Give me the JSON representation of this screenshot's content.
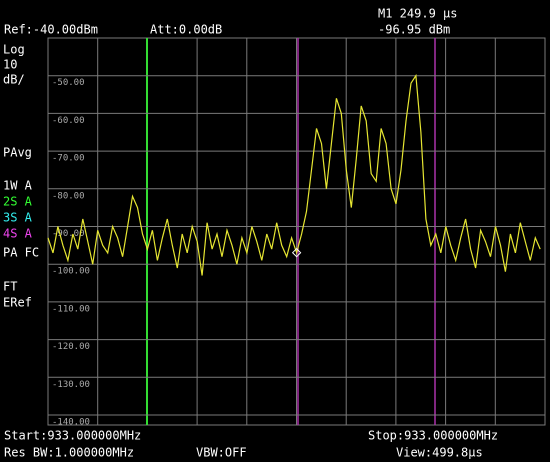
{
  "chart_data": {
    "type": "line",
    "x": [
      0,
      5,
      10,
      15,
      20,
      25,
      30,
      35,
      40,
      45,
      50,
      55,
      60,
      65,
      70,
      75,
      80,
      85,
      90,
      95,
      100,
      105,
      110,
      115,
      120,
      125,
      130,
      135,
      140,
      145,
      150,
      155,
      160,
      165,
      170,
      175,
      180,
      185,
      190,
      195,
      200,
      205,
      210,
      215,
      220,
      225,
      230,
      235,
      240,
      245,
      250,
      255,
      260,
      265,
      270,
      275,
      280,
      285,
      290,
      295,
      300,
      305,
      310,
      315,
      320,
      325,
      330,
      335,
      340,
      345,
      350,
      355,
      360,
      365,
      370,
      375,
      380,
      385,
      390,
      395,
      400,
      405,
      410,
      415,
      420,
      425,
      430,
      435,
      440,
      445,
      450,
      455,
      460,
      465,
      470,
      475,
      480,
      485,
      490,
      495
    ],
    "values": [
      -93,
      -97,
      -90,
      -95,
      -99,
      -92,
      -96,
      -88,
      -94,
      -100,
      -91,
      -95,
      -97,
      -90,
      -93,
      -98,
      -90,
      -82,
      -85,
      -92,
      -96,
      -91,
      -99,
      -93,
      -88,
      -95,
      -101,
      -92,
      -97,
      -90,
      -94,
      -103,
      -89,
      -96,
      -92,
      -98,
      -91,
      -95,
      -100,
      -93,
      -97,
      -90,
      -94,
      -99,
      -92,
      -96,
      -89,
      -95,
      -98,
      -93,
      -96.95,
      -92,
      -86,
      -75,
      -64,
      -68,
      -80,
      -68,
      -56,
      -60,
      -75,
      -85,
      -72,
      -58,
      -62,
      -76,
      -78,
      -64,
      -68,
      -80,
      -84,
      -75,
      -62,
      -52,
      -50,
      -65,
      -88,
      -95,
      -92,
      -97,
      -90,
      -95,
      -99,
      -93,
      -88,
      -96,
      -101,
      -91,
      -94,
      -98,
      -90,
      -95,
      -102,
      -92,
      -97,
      -89,
      -94,
      -99,
      -93,
      -96
    ],
    "color": "#e6e632",
    "xlim": [
      0,
      499.8
    ],
    "ylim": [
      -140,
      -40
    ],
    "yticks": [
      {
        "value": -50,
        "label": "-50.00"
      },
      {
        "value": -60,
        "label": "-60.00"
      },
      {
        "value": -70,
        "label": "-70.00"
      },
      {
        "value": -80,
        "label": "-80.00"
      },
      {
        "value": -90,
        "label": "-90.00"
      },
      {
        "value": -100,
        "label": "-100.00"
      },
      {
        "value": -110,
        "label": "-110.00"
      },
      {
        "value": -120,
        "label": "-120.00"
      },
      {
        "value": -130,
        "label": "-130.00"
      },
      {
        "value": -140,
        "label": "-140.00"
      }
    ],
    "grid": true
  },
  "header": {
    "ref": "Ref:-40.00dBm",
    "att": "Att:0.00dB",
    "marker_time": "M1 249.9 µs",
    "marker_level": "-96.95 dBm"
  },
  "side_labels": [
    "Log",
    "10",
    "dB/",
    "PAvg",
    "1W A",
    "2S A",
    "3S A",
    "4S A",
    "PA FC",
    "FT",
    "ERef"
  ],
  "footer": {
    "start": "Start:933.000000MHz",
    "stop": "Stop:933.000000MHz",
    "res_bw": "Res BW:1.000000MHz",
    "vbw": "VBW:OFF",
    "view": "View:499.8µs"
  }
}
